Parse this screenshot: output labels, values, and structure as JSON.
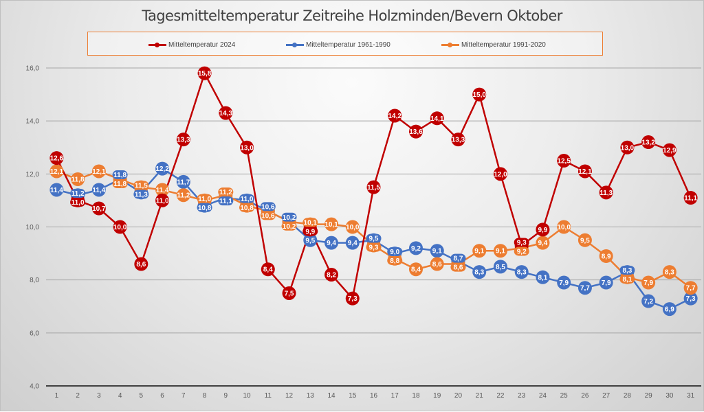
{
  "chart_data": {
    "type": "line",
    "title": "Tagesmitteltemperatur Zeitreihe Holzminden/Bevern Oktober",
    "xlabel": "",
    "ylabel": "",
    "ylim": [
      4.0,
      16.0
    ],
    "yticks": [
      "4,0",
      "6,0",
      "8,0",
      "10,0",
      "12,0",
      "14,0",
      "16,0"
    ],
    "grid": true,
    "legend_position": "top",
    "x": [
      1,
      2,
      3,
      4,
      5,
      6,
      7,
      8,
      9,
      10,
      11,
      12,
      13,
      14,
      15,
      16,
      17,
      18,
      19,
      20,
      21,
      22,
      23,
      24,
      25,
      26,
      27,
      28,
      29,
      30,
      31
    ],
    "series": [
      {
        "name": "Mitteltemperatur 2024",
        "color": "#C00000",
        "values": [
          12.6,
          11.0,
          10.7,
          10.0,
          8.6,
          11.0,
          13.3,
          15.8,
          14.3,
          13.0,
          8.4,
          7.5,
          9.9,
          8.2,
          7.3,
          11.5,
          14.2,
          13.6,
          14.1,
          13.3,
          15.0,
          12.0,
          9.3,
          9.9,
          12.5,
          12.1,
          11.3,
          13.0,
          13.2,
          12.9,
          11.1
        ]
      },
      {
        "name": "Mitteltemperatur 1961-1990",
        "color": "#4472C4",
        "values": [
          11.4,
          11.2,
          11.4,
          11.8,
          11.3,
          12.2,
          11.7,
          10.8,
          11.1,
          11.0,
          10.6,
          10.2,
          9.5,
          9.4,
          9.4,
          9.5,
          9.0,
          9.2,
          9.1,
          8.7,
          8.3,
          8.5,
          8.3,
          8.1,
          7.9,
          7.7,
          7.9,
          8.3,
          7.2,
          6.9,
          7.3
        ]
      },
      {
        "name": "Mitteltemperatur 1991-2020",
        "color": "#ED7D31",
        "values": [
          12.1,
          11.8,
          12.1,
          11.8,
          11.5,
          11.4,
          11.2,
          11.0,
          11.2,
          10.8,
          10.6,
          10.2,
          10.1,
          10.1,
          10.0,
          9.3,
          8.8,
          8.4,
          8.6,
          8.6,
          9.1,
          9.1,
          9.2,
          9.4,
          10.0,
          9.5,
          8.9,
          8.1,
          7.9,
          8.3,
          7.7
        ]
      }
    ]
  }
}
